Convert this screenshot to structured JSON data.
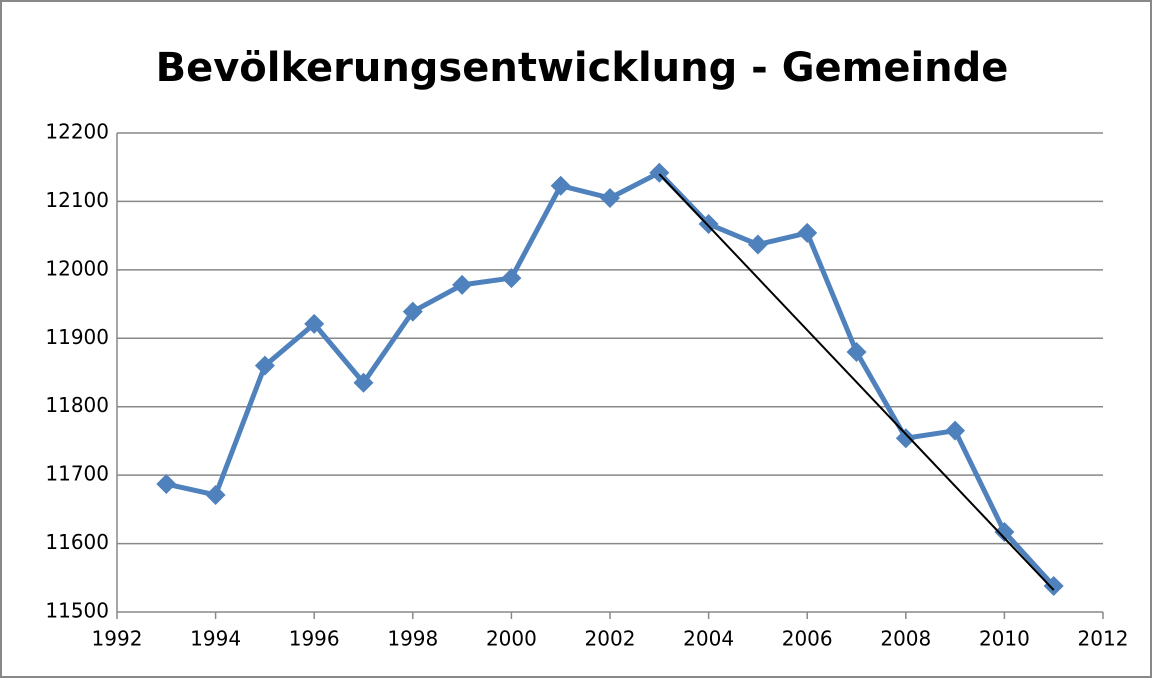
{
  "chart_data": {
    "type": "scatter",
    "title": "Bevölkerungsentwicklung - Gemeinde",
    "series": [
      {
        "color": "#4f81bd",
        "x": [
          1993,
          1994,
          1995,
          1996,
          1997,
          1998,
          1999,
          2000,
          2001,
          2002,
          2003,
          2004,
          2005,
          2006,
          2007,
          2008,
          2009,
          2010,
          2011
        ],
        "values": [
          11687,
          11671,
          11860,
          11921,
          11835,
          11939,
          11978,
          11988,
          12123,
          12105,
          12142,
          12067,
          12037,
          12054,
          11880,
          11754,
          11765,
          11617,
          11538
        ]
      },
      {
        "color": "#000000",
        "x": [
          2003,
          2011
        ],
        "values": [
          12140,
          11532
        ]
      }
    ],
    "xlim": [
      1992,
      2012
    ],
    "xticks": [
      1992,
      1994,
      1996,
      1998,
      2000,
      2002,
      2004,
      2006,
      2008,
      2010,
      2012
    ],
    "ylim": [
      11500,
      12200
    ],
    "yticks": [
      11500,
      11600,
      11700,
      11800,
      11900,
      12000,
      12100,
      12200
    ],
    "grid": true
  }
}
